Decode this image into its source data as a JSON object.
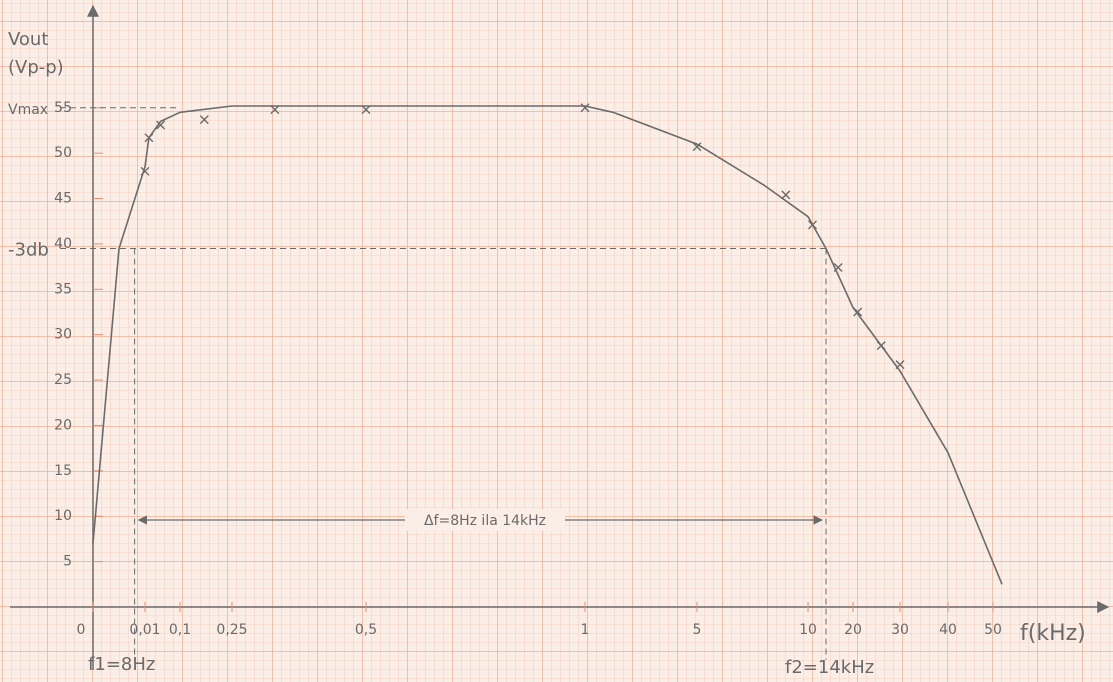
{
  "chart_data": {
    "type": "line",
    "ylabel": [
      "Vout",
      "(Vp-p)"
    ],
    "xlabel": "f(kHz)",
    "ylim": [
      0,
      65
    ],
    "yticks": [
      5,
      10,
      15,
      20,
      25,
      30,
      35,
      40,
      45,
      50,
      55
    ],
    "xticks": [
      0,
      {
        "value": 0.01,
        "label": "0,01"
      },
      {
        "value": 0.1,
        "label": "0,1"
      },
      {
        "value": 0.25,
        "label": "0,25"
      },
      {
        "value": 0.5,
        "label": "0,5"
      },
      1,
      5,
      10,
      20,
      30,
      40,
      50
    ],
    "grid": true,
    "series": [
      {
        "color": "#6b6b6b",
        "markers": true,
        "x": [
          0.01,
          0.02,
          0.05,
          0.17,
          0.33,
          0.5,
          1,
          5,
          9,
          11,
          16.7,
          21,
          26,
          30
        ],
        "values": [
          48,
          51.7,
          53.1,
          53.7,
          54.8,
          54.8,
          55,
          50.7,
          45.4,
          42.1,
          37.4,
          32.5,
          28.8,
          26.7
        ]
      },
      {
        "color": "#6b6b6b",
        "markers": false,
        "x": [
          0,
          0.005,
          0.01,
          0.02,
          0.05,
          0.1,
          0.25,
          0.5,
          1,
          2,
          5,
          8,
          10,
          14,
          20,
          30,
          40,
          52
        ],
        "values": [
          7,
          39.5,
          48.5,
          51.7,
          53.5,
          54.5,
          55.2,
          55.2,
          55.2,
          54.5,
          51,
          46.5,
          43,
          39.5,
          33,
          26,
          17,
          2.5
        ]
      }
    ],
    "vmax": {
      "label": "Vmax",
      "value": 55
    },
    "cutoff": {
      "label": "-3db",
      "value": 39.5
    },
    "f1": {
      "label": "f1=8Hz",
      "value": 0.008
    },
    "f2": {
      "label": "f2=14kHz",
      "value": 14
    },
    "bandwidth_label": "Δf=8Hz ila 14kHz"
  }
}
